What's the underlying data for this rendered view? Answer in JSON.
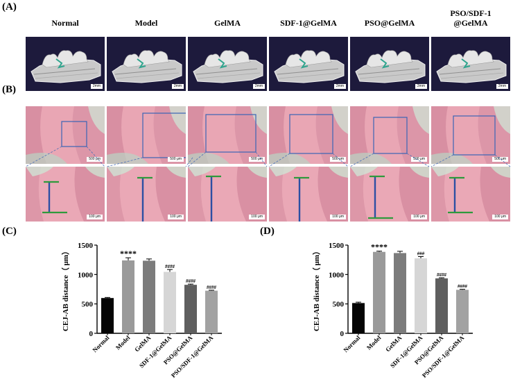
{
  "panels": {
    "a_label": "(A)",
    "b_label": "(B)",
    "c_label": "(C)",
    "d_label": "(D)"
  },
  "groups": [
    {
      "head_line1": "Normal",
      "head_line2": ""
    },
    {
      "head_line1": "Model",
      "head_line2": ""
    },
    {
      "head_line1": "GelMA",
      "head_line2": ""
    },
    {
      "head_line1": "SDF-1@GelMA",
      "head_line2": ""
    },
    {
      "head_line1": "PSO@GelMA",
      "head_line2": ""
    },
    {
      "head_line1": "PSO/SDF-1",
      "head_line2": "@GelMA"
    }
  ],
  "micro_ct_scale": "2mm",
  "histology": {
    "low_mag_scale": "500 μm",
    "high_mag_scale": "100 μm"
  },
  "colors": {
    "ct_background": "#1d1a3c",
    "tissue_pink": "#e9a6b4",
    "roi_box": "#3a63b5",
    "measure_blue": "#2c4fa3",
    "measure_green": "#2e9a3c"
  },
  "chart_data": [
    {
      "type": "bar",
      "panel": "(C)",
      "ylabel": "CEJ-AB distance（ μm）",
      "ylim": [
        0,
        1500
      ],
      "yticks": [
        "0",
        "500",
        "1000",
        "1500"
      ],
      "categories": [
        "Normal",
        "Model",
        "GelMA",
        "SDF-1@GelMA",
        "PSO@GelMA",
        "PSO/SDF-1@GelMA"
      ],
      "values": [
        600,
        1240,
        1235,
        1045,
        825,
        725
      ],
      "errors": [
        10,
        45,
        30,
        40,
        12,
        8
      ],
      "annotations": [
        "",
        "****",
        "",
        "####",
        "####",
        "####"
      ],
      "bar_colors": [
        "#050505",
        "#9a9a9a",
        "#7c7c7c",
        "#d6d6d6",
        "#5f5f5f",
        "#a2a2a2"
      ]
    },
    {
      "type": "bar",
      "panel": "(D)",
      "ylabel": "CEJ-AB distance（ μm）",
      "ylim": [
        0,
        1500
      ],
      "yticks": [
        "0",
        "500",
        "1000",
        "1500"
      ],
      "categories": [
        "Normal",
        "Model",
        "GelMA",
        "SDF-1@GelMA",
        "PSO@GelMA",
        "PSO/SDF-1@GelMA"
      ],
      "values": [
        515,
        1385,
        1365,
        1275,
        935,
        740
      ],
      "errors": [
        15,
        12,
        30,
        30,
        10,
        8
      ],
      "annotations": [
        "",
        "****",
        "",
        "###",
        "####",
        "####"
      ],
      "bar_colors": [
        "#050505",
        "#9a9a9a",
        "#7c7c7c",
        "#d6d6d6",
        "#5f5f5f",
        "#a2a2a2"
      ]
    }
  ]
}
